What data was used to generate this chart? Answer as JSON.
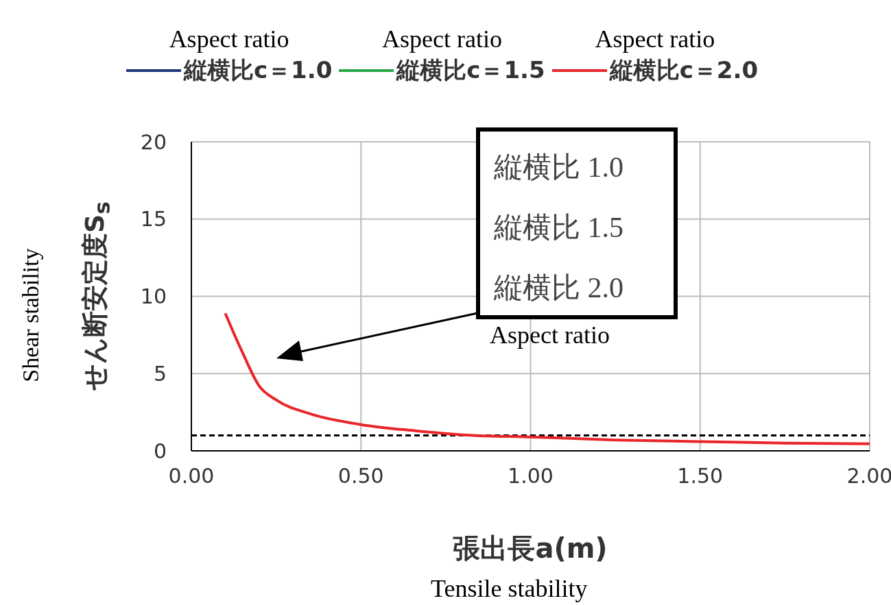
{
  "chart_data": {
    "type": "line",
    "xlabel": "張出長a(m)",
    "ylabel": "せん断安定度S$_{s}$",
    "x": [
      0.1,
      0.15,
      0.2,
      0.25,
      0.35,
      0.5,
      0.66,
      0.83,
      1.0,
      1.25,
      1.5,
      1.75,
      2.0
    ],
    "series": [
      {
        "name": "縦横比c＝1.0",
        "color": "#1f3a78",
        "values": [
          null,
          null,
          null,
          null,
          null,
          null,
          null,
          null,
          null,
          null,
          null,
          null,
          null
        ]
      },
      {
        "name": "縦横比c＝1.5",
        "color": "#2aa84a",
        "values": [
          null,
          null,
          null,
          null,
          null,
          null,
          null,
          null,
          null,
          null,
          null,
          null,
          null
        ]
      },
      {
        "name": "縦横比c＝2.0",
        "color": "#e8262b",
        "values": [
          8.9,
          6.4,
          4.2,
          3.3,
          2.4,
          1.7,
          1.3,
          1.0,
          0.9,
          0.7,
          0.6,
          0.5,
          0.45
        ]
      }
    ],
    "xlim": [
      0,
      2
    ],
    "xticks": [
      {
        "value": 0,
        "label": "0.00"
      },
      {
        "value": 0.5,
        "label": "0.50"
      },
      {
        "value": 1,
        "label": "1.00"
      },
      {
        "value": 1.5,
        "label": "1.50"
      },
      {
        "value": 2,
        "label": "2.00"
      }
    ],
    "ylim": [
      0,
      20
    ],
    "yticks": [
      0,
      5,
      10,
      15,
      20
    ],
    "grid": true,
    "legend": "top",
    "line_style": "solid",
    "ref_lines": [
      {
        "axis": "y",
        "value": 1,
        "color": "#000000",
        "line_style": "dashed"
      }
    ],
    "annotations": [
      "Aspect ratio",
      "Aspect ratio",
      "Aspect ratio",
      "縦横比 1.0",
      "縦横比 1.5",
      "縦横比 2.0",
      "Aspect ratio",
      "Shear stability",
      "Tensile stability"
    ]
  }
}
